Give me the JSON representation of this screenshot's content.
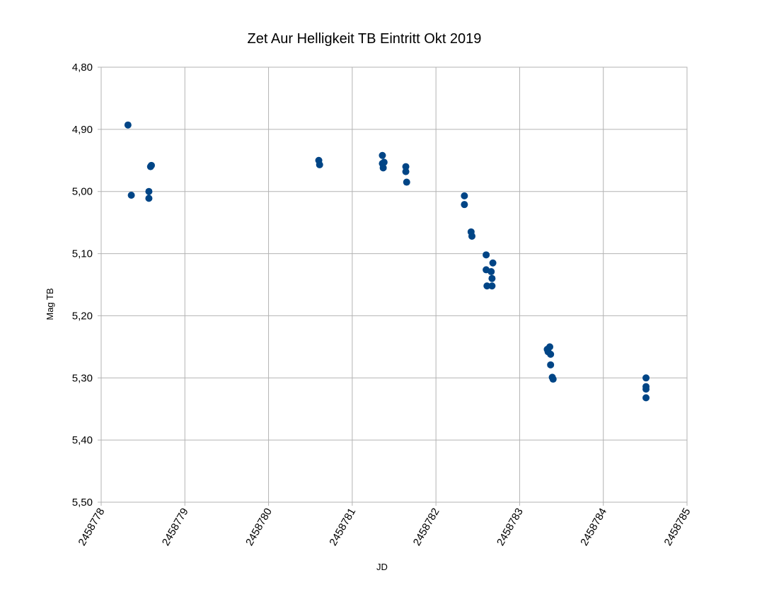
{
  "chart_data": {
    "type": "scatter",
    "title": "Zet Aur   Helligkeit TB   Eintritt Okt 2019",
    "xlabel": "JD",
    "ylabel": "Mag TB",
    "xlim": [
      2458778,
      2458785
    ],
    "ylim": [
      4.8,
      5.5
    ],
    "y_reversed": true,
    "grid": true,
    "legend": "none",
    "x_ticks": [
      "2458778",
      "2458779",
      "2458780",
      "2458781",
      "2458782",
      "2458783",
      "2458784",
      "2458785"
    ],
    "y_ticks": [
      "4,80",
      "4,90",
      "5,00",
      "5,10",
      "5,20",
      "5,30",
      "5,40",
      "5,50"
    ],
    "marker_color": "#004586",
    "points": [
      {
        "x": 2458778.32,
        "y": 4.893
      },
      {
        "x": 2458778.36,
        "y": 5.006
      },
      {
        "x": 2458778.57,
        "y": 5.0
      },
      {
        "x": 2458778.57,
        "y": 5.011
      },
      {
        "x": 2458778.59,
        "y": 4.96
      },
      {
        "x": 2458778.6,
        "y": 4.958
      },
      {
        "x": 2458780.6,
        "y": 4.95
      },
      {
        "x": 2458780.61,
        "y": 4.957
      },
      {
        "x": 2458781.36,
        "y": 4.942
      },
      {
        "x": 2458781.36,
        "y": 4.955
      },
      {
        "x": 2458781.37,
        "y": 4.962
      },
      {
        "x": 2458781.38,
        "y": 4.953
      },
      {
        "x": 2458781.64,
        "y": 4.96
      },
      {
        "x": 2458781.64,
        "y": 4.968
      },
      {
        "x": 2458781.65,
        "y": 4.985
      },
      {
        "x": 2458782.34,
        "y": 5.007
      },
      {
        "x": 2458782.34,
        "y": 5.021
      },
      {
        "x": 2458782.42,
        "y": 5.065
      },
      {
        "x": 2458782.43,
        "y": 5.072
      },
      {
        "x": 2458782.6,
        "y": 5.102
      },
      {
        "x": 2458782.6,
        "y": 5.126
      },
      {
        "x": 2458782.61,
        "y": 5.152
      },
      {
        "x": 2458782.66,
        "y": 5.129
      },
      {
        "x": 2458782.67,
        "y": 5.14
      },
      {
        "x": 2458782.67,
        "y": 5.152
      },
      {
        "x": 2458782.68,
        "y": 5.115
      },
      {
        "x": 2458783.33,
        "y": 5.254
      },
      {
        "x": 2458783.34,
        "y": 5.258
      },
      {
        "x": 2458783.36,
        "y": 5.25
      },
      {
        "x": 2458783.37,
        "y": 5.262
      },
      {
        "x": 2458783.37,
        "y": 5.279
      },
      {
        "x": 2458783.39,
        "y": 5.299
      },
      {
        "x": 2458783.4,
        "y": 5.302
      },
      {
        "x": 2458784.51,
        "y": 5.3
      },
      {
        "x": 2458784.51,
        "y": 5.314
      },
      {
        "x": 2458784.51,
        "y": 5.318
      },
      {
        "x": 2458784.51,
        "y": 5.332
      }
    ]
  }
}
